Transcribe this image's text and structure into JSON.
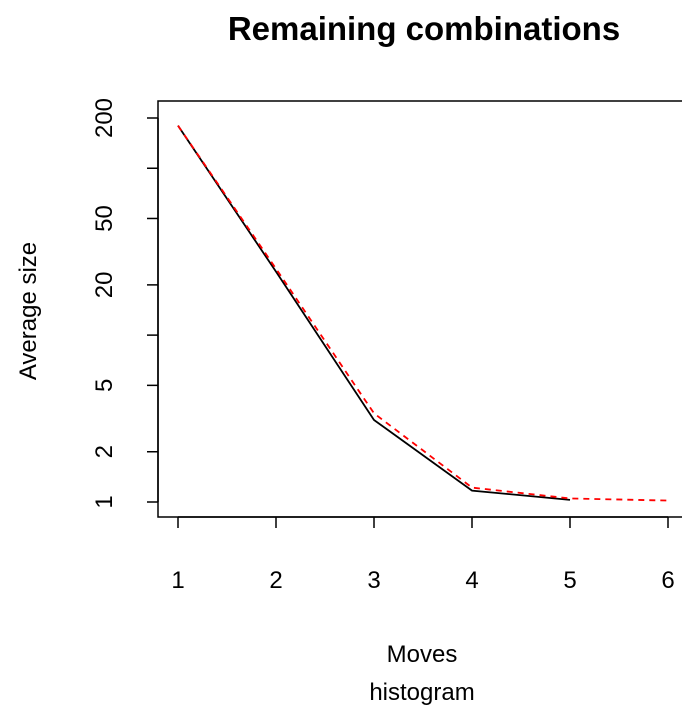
{
  "chart_data": {
    "type": "line",
    "title": "Remaining combinations",
    "xlabel": "Moves",
    "xlabel_line2": "histogram",
    "ylabel": "Average size",
    "y_scale": "log",
    "xlim": [
      1,
      6
    ],
    "ylim": [
      1,
      200
    ],
    "x_ticks": [
      1,
      2,
      3,
      4,
      5,
      6
    ],
    "y_ticks": [
      1,
      2,
      5,
      10,
      20,
      50,
      100,
      200
    ],
    "y_tick_labels": [
      "1",
      "2",
      "5",
      "",
      "20",
      "50",
      "",
      "200"
    ],
    "grid": false,
    "legend": "none",
    "series": [
      {
        "x": [
          1,
          2,
          3,
          4,
          5
        ],
        "values": [
          180,
          24,
          3.1,
          1.17,
          1.03
        ],
        "color": "#000000",
        "style": "solid"
      },
      {
        "x": [
          1,
          2,
          3,
          4,
          5,
          6
        ],
        "values": [
          180,
          25,
          3.4,
          1.22,
          1.05,
          1.02
        ],
        "color": "#ff0000",
        "style": "dashed"
      }
    ]
  }
}
